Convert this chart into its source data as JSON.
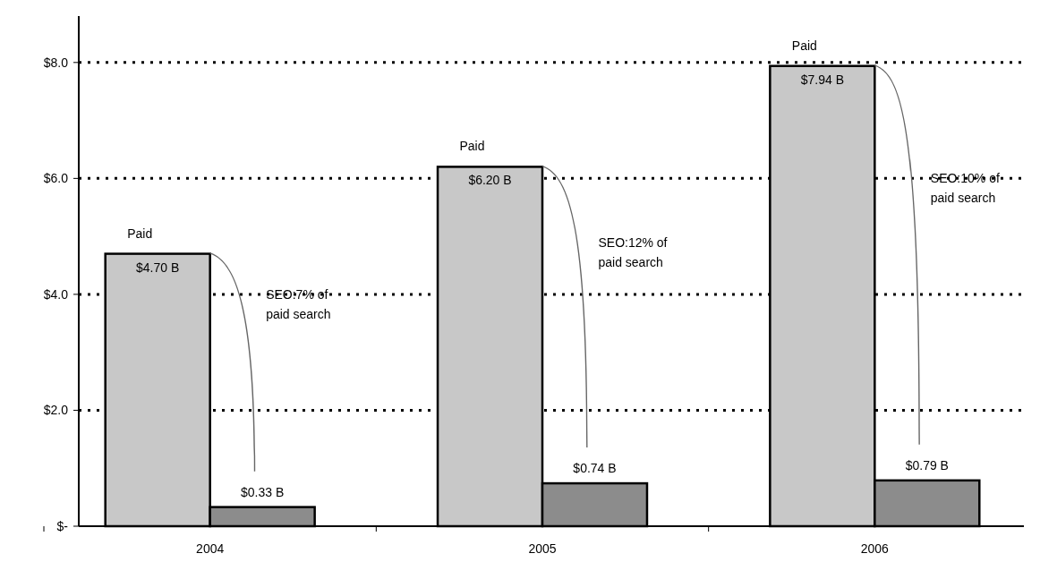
{
  "chart_data": {
    "type": "bar",
    "categories": [
      "2004",
      "2005",
      "2006"
    ],
    "series": [
      {
        "name": "Paid",
        "color": "#c8c8c8",
        "values": [
          4.7,
          6.2,
          7.94
        ],
        "value_labels": [
          "$4.70 B",
          "$6.20 B",
          "$7.94 B"
        ]
      },
      {
        "color": "#8c8c8c",
        "values": [
          0.33,
          0.74,
          0.79
        ],
        "value_labels": [
          "$0.33 B",
          "$0.74 B",
          "$0.79 B"
        ]
      }
    ],
    "ylim": [
      0,
      8.8
    ],
    "yticks": [
      {
        "value": 0,
        "label": "$-"
      },
      {
        "value": 2,
        "label": "$2.0"
      },
      {
        "value": 4,
        "label": "$4.0"
      },
      {
        "value": 6,
        "label": "$6.0"
      },
      {
        "value": 8,
        "label": "$8.0"
      }
    ],
    "grid": "y",
    "annotations": [
      "SEO:7% of\npaid search",
      "SEO:12% of\npaid search",
      "SEO:10% of\npaid search"
    ]
  }
}
